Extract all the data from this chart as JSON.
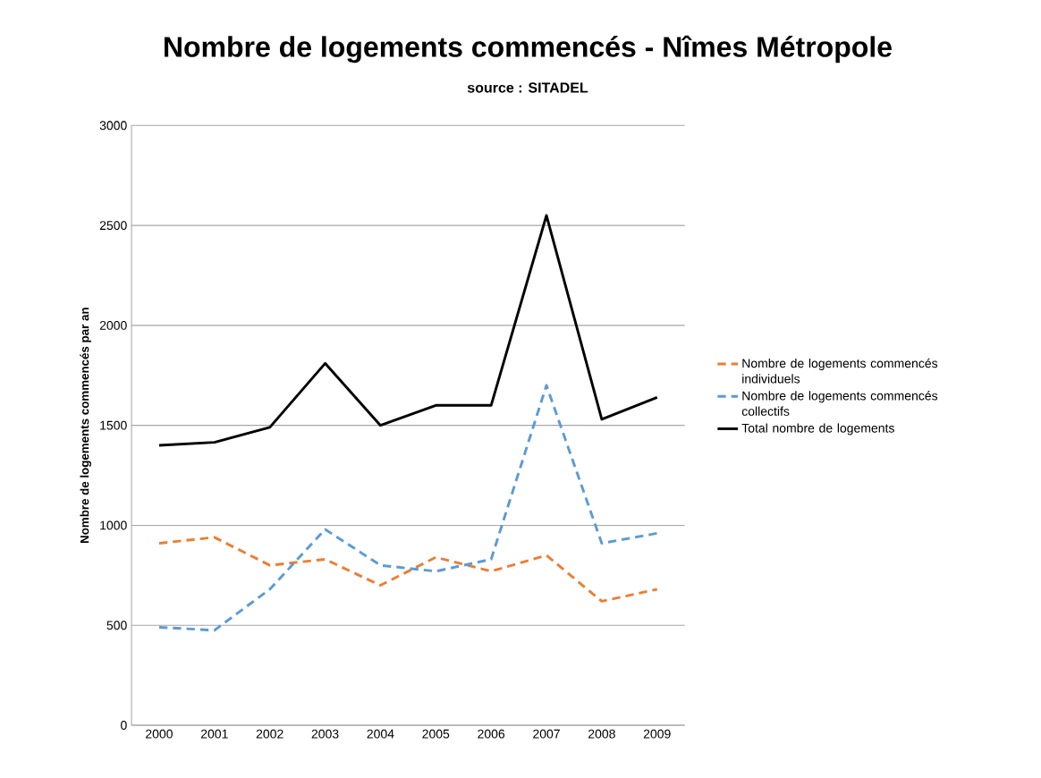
{
  "chart_data": {
    "type": "line",
    "title": "Nombre de logements commencés - Nîmes Métropole",
    "subtitle": "source : SITADEL",
    "ylabel": "Nombre de logements commencés par an",
    "categories": [
      "2000",
      "2001",
      "2002",
      "2003",
      "2004",
      "2005",
      "2006",
      "2007",
      "2008",
      "2009"
    ],
    "series": [
      {
        "name": "Nombre de logements commencés individuels",
        "color": "#ed7d31",
        "line_style": "dashed",
        "values": [
          910,
          940,
          800,
          830,
          700,
          840,
          770,
          850,
          620,
          680
        ]
      },
      {
        "name": "Nombre de logements commencés collectifs",
        "color": "#5b9bd5",
        "line_style": "dashed",
        "values": [
          490,
          475,
          680,
          980,
          800,
          770,
          830,
          1700,
          910,
          960
        ]
      },
      {
        "name": "Total nombre de logements",
        "color": "#000000",
        "line_style": "solid",
        "values": [
          1400,
          1415,
          1490,
          1810,
          1500,
          1600,
          1600,
          2550,
          1530,
          1640
        ]
      }
    ],
    "ylim": [
      0,
      3000
    ],
    "yticks": [
      0,
      500,
      1000,
      1500,
      2000,
      2500,
      3000
    ],
    "grid": "y",
    "legend": "right",
    "marker": "none"
  }
}
